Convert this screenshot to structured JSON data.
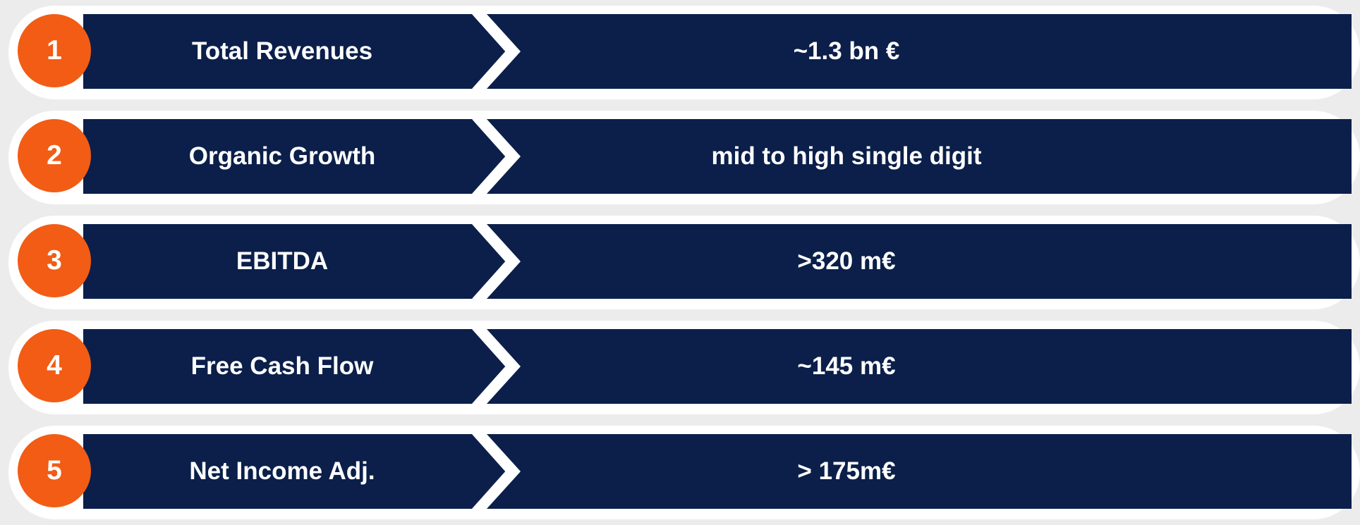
{
  "colors": {
    "navy": "#0b1f4a",
    "orange": "#f25c14",
    "background": "#ececec",
    "white": "#ffffff"
  },
  "rows": [
    {
      "number": "1",
      "label": "Total Revenues",
      "value": "~1.3 bn €"
    },
    {
      "number": "2",
      "label": "Organic Growth",
      "value": "mid to high single digit"
    },
    {
      "number": "3",
      "label": "EBITDA",
      "value": ">320 m€"
    },
    {
      "number": "4",
      "label": "Free Cash Flow",
      "value": "~145 m€"
    },
    {
      "number": "5",
      "label": "Net Income Adj.",
      "value": "> 175m€"
    }
  ]
}
